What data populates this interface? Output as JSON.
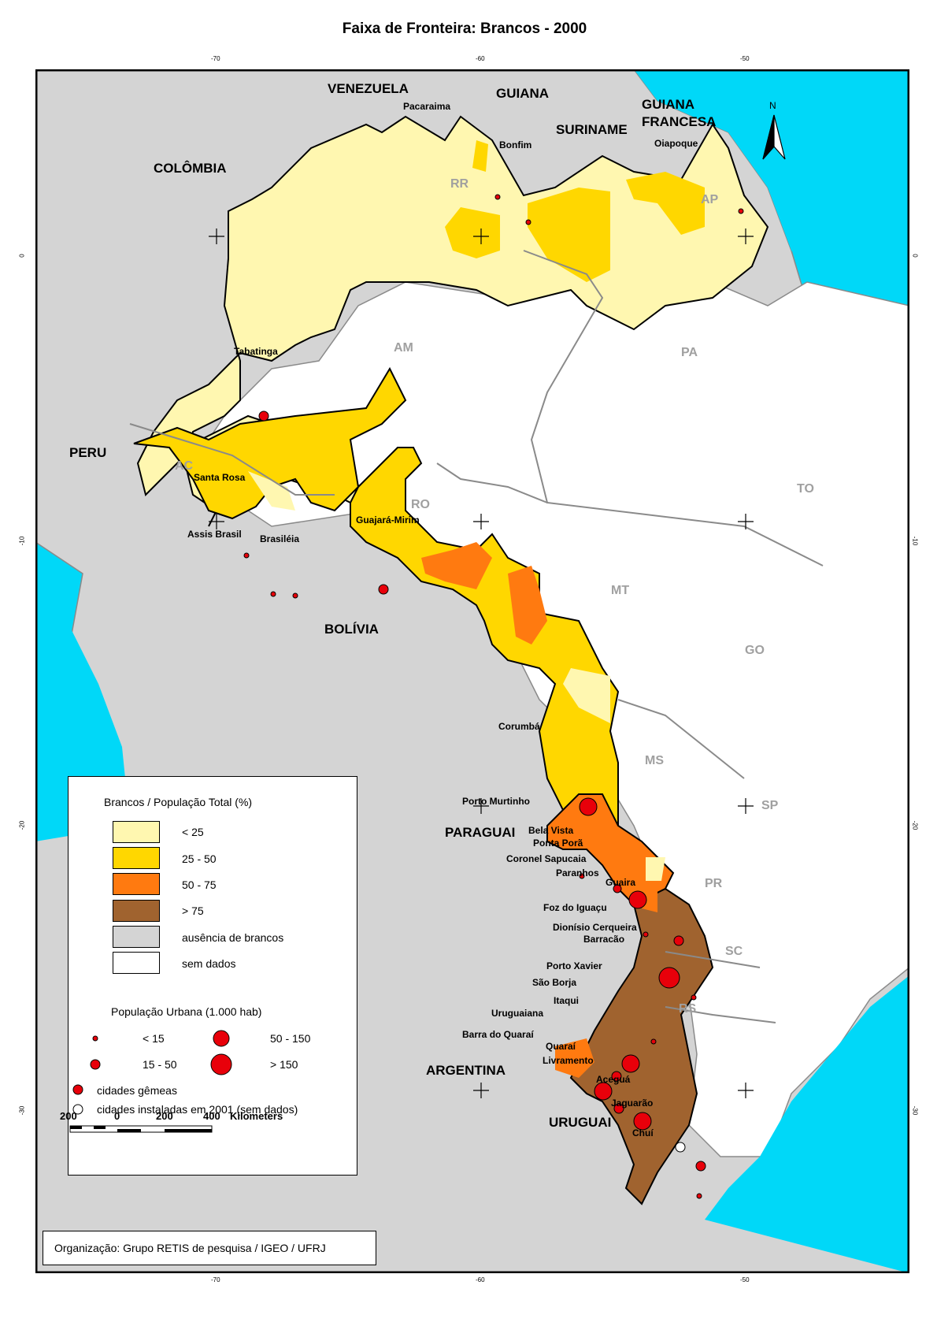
{
  "title": "Faixa de Fronteira: Brancos - 2000",
  "graticule": {
    "top": [
      "-70",
      "-60",
      "-50"
    ],
    "bottom": [
      "-70",
      "-60",
      "-50"
    ],
    "left": [
      "0",
      "-10",
      "-20",
      "-30"
    ],
    "right": [
      "0",
      "-10",
      "-20",
      "-30"
    ]
  },
  "countries": {
    "venezuela": "VENEZUELA",
    "guiana": "GUIANA",
    "suriname": "SURINAME",
    "guiana_francesa_1": "GUIANA",
    "guiana_francesa_2": "FRANCESA",
    "colombia": "COLÔMBIA",
    "peru": "PERU",
    "bolivia": "BOLÍVIA",
    "paraguai": "PARAGUAI",
    "argentina": "ARGENTINA",
    "uruguai": "URUGUAI"
  },
  "states": {
    "rr": "RR",
    "ap": "AP",
    "am": "AM",
    "pa": "PA",
    "ac": "AC",
    "ro": "RO",
    "to": "TO",
    "mt": "MT",
    "go": "GO",
    "ms": "MS",
    "sp": "SP",
    "pr": "PR",
    "sc": "SC",
    "rs": "RS"
  },
  "cities": {
    "pacaraima": "Pacaraima",
    "bonfim": "Bonfim",
    "oiapoque": "Oiapoque",
    "tabatinga": "Tabatinga",
    "santa_rosa": "Santa Rosa",
    "assis_brasil": "Assis Brasil",
    "brasileia": "Brasiléia",
    "guajara_mirim": "Guajará-Mirim",
    "corumba": "Corumbá",
    "porto_murtinho": "Porto Murtinho",
    "bela_vista": "Bela Vista",
    "ponta_pora": "Ponta Porã",
    "coronel_sapucaia": "Coronel Sapucaia",
    "paranhos": "Paranhos",
    "guaira": "Guaira",
    "foz_do_iguacu": "Foz do Iguaçu",
    "dionisio_cerqueira": "Dionísio Cerqueira",
    "barracao": "Barracão",
    "porto_xavier": "Porto Xavier",
    "sao_borja": "São Borja",
    "itaqui": "Itaqui",
    "uruguaiana": "Uruguaiana",
    "barra_do_quarai": "Barra do Quaraí",
    "quarai": "Quaraí",
    "livramento": "Livramento",
    "acegua": "Aceguá",
    "jaguarao": "Jaguarão",
    "chui": "Chuí"
  },
  "legend": {
    "classes_title": "Brancos / População Total (%)",
    "classes": [
      {
        "label": "< 25",
        "color": "#fff7b0"
      },
      {
        "label": "25 - 50",
        "color": "#ffd700"
      },
      {
        "label": "50 - 75",
        "color": "#ff7a10"
      },
      {
        "label": "> 75",
        "color": "#a0632f"
      },
      {
        "label": "ausência de brancos",
        "color": "#d4d4d4"
      },
      {
        "label": "sem dados",
        "color": "#ffffff"
      }
    ],
    "pop_title": "População Urbana (1.000 hab)",
    "pop_classes": [
      "< 15",
      "15 - 50",
      "50 - 150",
      "> 150"
    ],
    "twin_cities": "cidades gêmeas",
    "new_cities": "cidades instaladas em 2001 (sem dados)"
  },
  "scalebar": {
    "labels": [
      "200",
      "0",
      "200",
      "400"
    ],
    "unit": "Kilometers"
  },
  "north": "N",
  "credit": "Organização: Grupo RETIS de pesquisa / IGEO / UFRJ",
  "colors": {
    "ocean": "#00d8f8",
    "foreign": "#d4d4d4",
    "brazil": "#ffffff",
    "lt25": "#fff7b0",
    "c25_50": "#ffd700",
    "c50_75": "#ff7a10",
    "gt75": "#a0632f",
    "city": "#e8000a"
  }
}
